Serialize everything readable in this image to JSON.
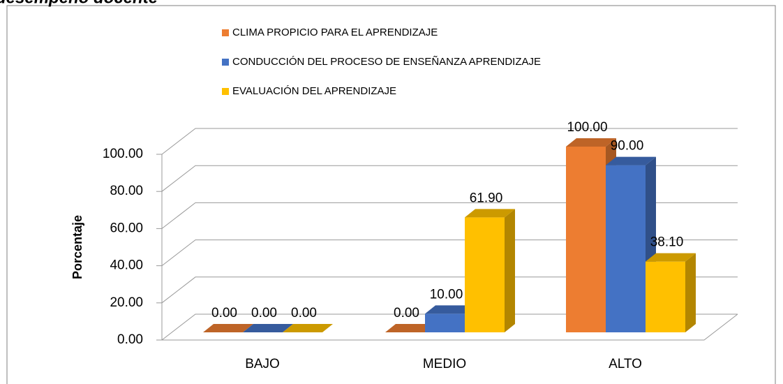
{
  "chart_data": {
    "type": "bar3d",
    "title": "desempeño docente",
    "y_label": "Porcentaje",
    "categories": [
      "BAJO",
      "MEDIO",
      "ALTO"
    ],
    "series": [
      {
        "name": "CLIMA PROPICIO PARA EL APRENDIZAJE",
        "color": "#ED7D31",
        "values": [
          0,
          0,
          100
        ],
        "value_labels": [
          "0.00",
          "0.00",
          "100.00"
        ]
      },
      {
        "name": "CONDUCCIÓN DEL PROCESO DE ENSEÑANZA APRENDIZAJE",
        "color": "#4472C4",
        "values": [
          0,
          10,
          90
        ],
        "value_labels": [
          "0.00",
          "10.00",
          "90.00"
        ]
      },
      {
        "name": "EVALUACIÓN DEL APRENDIZAJE",
        "color": "#FFC000",
        "values": [
          0,
          61.9,
          38.1
        ],
        "value_labels": [
          "0.00",
          "61.90",
          "38.10"
        ]
      }
    ],
    "ylim": [
      0,
      100
    ],
    "yticks": [
      {
        "value": 0,
        "label": "0.00"
      },
      {
        "value": 20,
        "label": "20.00"
      },
      {
        "value": 40,
        "label": "40.00"
      },
      {
        "value": 60,
        "label": "60.00"
      },
      {
        "value": 80,
        "label": "80.00"
      },
      {
        "value": 100,
        "label": "100.00"
      }
    ],
    "grid": true,
    "legend": "top"
  }
}
